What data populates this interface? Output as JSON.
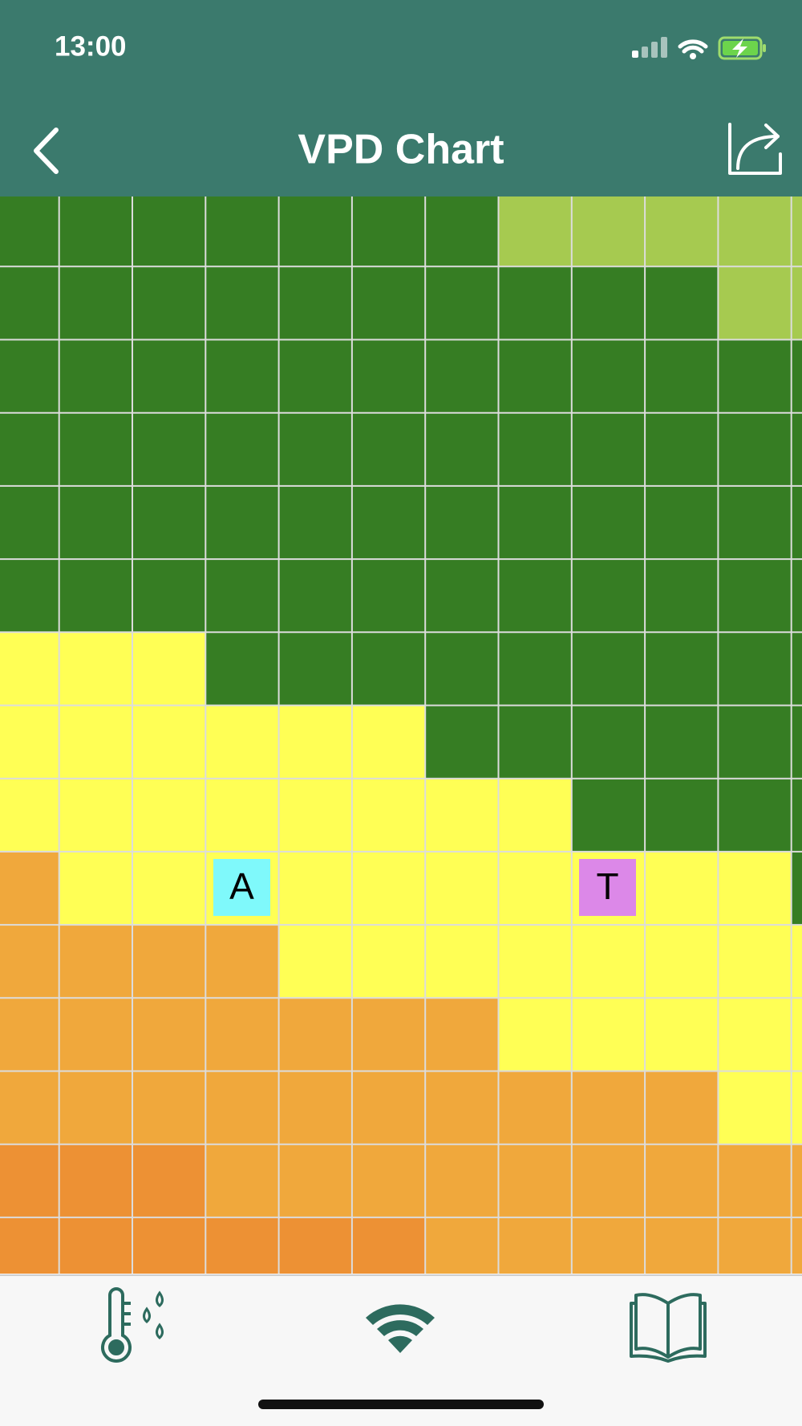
{
  "status_bar": {
    "time": "13:00"
  },
  "nav_bar": {
    "title": "VPD Chart"
  },
  "chart": {
    "markers": [
      {
        "label": "A"
      },
      {
        "label": "T"
      }
    ]
  }
}
